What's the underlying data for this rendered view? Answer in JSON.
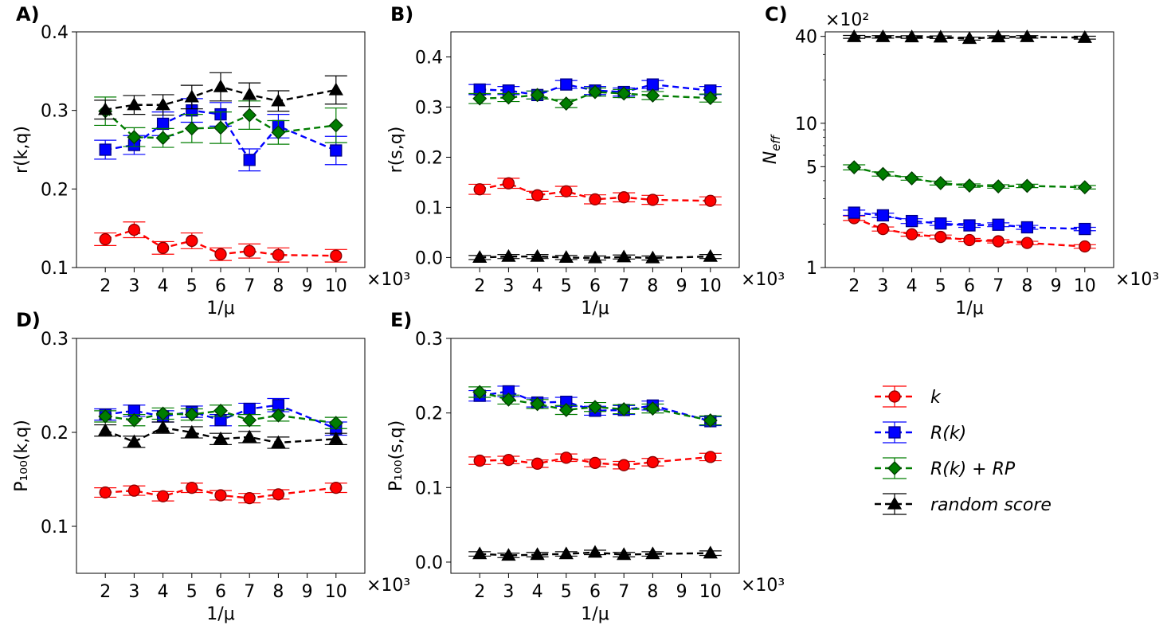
{
  "chart_data": [
    {
      "panel": "A)",
      "type": "line",
      "scale": "linear",
      "xlabel": "1/μ",
      "ylabel": "r(k,q)",
      "x_offset_label": "×10³",
      "x": [
        2,
        3,
        4,
        5,
        6,
        7,
        8,
        10
      ],
      "xlim": [
        1,
        11
      ],
      "ylim": [
        0.1,
        0.4
      ],
      "xticks": [
        2,
        3,
        4,
        5,
        6,
        7,
        8,
        9,
        10
      ],
      "yticks": [
        {
          "v": 0.1,
          "label": "0.1"
        },
        {
          "v": 0.2,
          "label": "0.2"
        },
        {
          "v": 0.3,
          "label": "0.3"
        },
        {
          "v": 0.4,
          "label": "0.4"
        }
      ],
      "series": [
        {
          "name": "k",
          "values": [
            0.136,
            0.148,
            0.125,
            0.134,
            0.117,
            0.121,
            0.116,
            0.115
          ],
          "errors": [
            0.008,
            0.01,
            0.008,
            0.01,
            0.008,
            0.009,
            0.009,
            0.008
          ]
        },
        {
          "name": "R(k)",
          "values": [
            0.25,
            0.256,
            0.283,
            0.3,
            0.295,
            0.237,
            0.28,
            0.249
          ],
          "errors": [
            0.012,
            0.012,
            0.015,
            0.015,
            0.015,
            0.014,
            0.015,
            0.018
          ]
        },
        {
          "name": "R(k)+RP",
          "values": [
            0.299,
            0.266,
            0.265,
            0.277,
            0.278,
            0.294,
            0.272,
            0.281
          ],
          "errors": [
            0.018,
            0.012,
            0.012,
            0.018,
            0.02,
            0.018,
            0.015,
            0.022
          ]
        },
        {
          "name": "random score",
          "values": [
            0.301,
            0.307,
            0.307,
            0.317,
            0.33,
            0.32,
            0.312,
            0.326
          ],
          "errors": [
            0.012,
            0.012,
            0.013,
            0.015,
            0.018,
            0.015,
            0.013,
            0.018
          ]
        }
      ]
    },
    {
      "panel": "B)",
      "type": "line",
      "scale": "linear",
      "xlabel": "1/μ",
      "ylabel": "r(s,q)",
      "x_offset_label": "×10³",
      "x": [
        2,
        3,
        4,
        5,
        6,
        7,
        8,
        10
      ],
      "xlim": [
        1,
        11
      ],
      "ylim": [
        -0.02,
        0.45
      ],
      "xticks": [
        2,
        3,
        4,
        5,
        6,
        7,
        8,
        9,
        10
      ],
      "yticks": [
        {
          "v": 0.0,
          "label": "0.0"
        },
        {
          "v": 0.1,
          "label": "0.1"
        },
        {
          "v": 0.2,
          "label": "0.2"
        },
        {
          "v": 0.3,
          "label": "0.3"
        },
        {
          "v": 0.4,
          "label": "0.4"
        }
      ],
      "series": [
        {
          "name": "k",
          "values": [
            0.136,
            0.148,
            0.124,
            0.132,
            0.116,
            0.12,
            0.115,
            0.113
          ],
          "errors": [
            0.01,
            0.01,
            0.008,
            0.01,
            0.009,
            0.009,
            0.009,
            0.008
          ]
        },
        {
          "name": "R(k)",
          "values": [
            0.335,
            0.333,
            0.324,
            0.345,
            0.333,
            0.33,
            0.345,
            0.333
          ],
          "errors": [
            0.01,
            0.008,
            0.008,
            0.008,
            0.008,
            0.008,
            0.008,
            0.008
          ]
        },
        {
          "name": "R(k)+RP",
          "values": [
            0.317,
            0.319,
            0.324,
            0.307,
            0.33,
            0.327,
            0.323,
            0.318
          ],
          "errors": [
            0.01,
            0.008,
            0.008,
            0.008,
            0.008,
            0.008,
            0.008,
            0.008
          ]
        },
        {
          "name": "random score",
          "values": [
            0.0,
            0.002,
            0.002,
            0.0,
            -0.001,
            0.001,
            -0.001,
            0.002
          ],
          "errors": [
            0.004,
            0.004,
            0.004,
            0.004,
            0.004,
            0.004,
            0.004,
            0.004
          ]
        }
      ]
    },
    {
      "panel": "C)",
      "type": "line",
      "scale": "log",
      "xlabel": "1/μ",
      "ylabel": "N_eff",
      "x_offset_label": "×10³",
      "y_offset_label": "×10²",
      "x": [
        2,
        3,
        4,
        5,
        6,
        7,
        8,
        10
      ],
      "xlim": [
        1,
        11
      ],
      "ylim": [
        1,
        43
      ],
      "xticks": [
        2,
        3,
        4,
        5,
        6,
        7,
        8,
        9,
        10
      ],
      "yticks": [
        {
          "v": 1,
          "label": "1"
        },
        {
          "v": 5,
          "label": "5"
        },
        {
          "v": 10,
          "label": "10"
        },
        {
          "v": 40,
          "label": "40"
        }
      ],
      "series": [
        {
          "name": "k",
          "values": [
            2.2,
            1.85,
            1.7,
            1.63,
            1.55,
            1.52,
            1.48,
            1.4
          ],
          "errors": [
            0.08,
            0.06,
            0.05,
            0.05,
            0.04,
            0.04,
            0.04,
            0.04
          ]
        },
        {
          "name": "R(k)",
          "values": [
            2.4,
            2.3,
            2.1,
            2.02,
            1.96,
            1.98,
            1.9,
            1.85
          ],
          "errors": [
            0.1,
            0.08,
            0.08,
            0.06,
            0.06,
            0.06,
            0.06,
            0.05
          ]
        },
        {
          "name": "R(k)+RP",
          "values": [
            4.95,
            4.45,
            4.15,
            3.85,
            3.7,
            3.65,
            3.68,
            3.6
          ],
          "errors": [
            0.2,
            0.15,
            0.12,
            0.12,
            0.1,
            0.1,
            0.1,
            0.1
          ]
        },
        {
          "name": "random score",
          "values": [
            39.7,
            39.7,
            39.6,
            39.5,
            38.6,
            39.6,
            39.7,
            39.2
          ],
          "errors": [
            0.9,
            0.8,
            0.8,
            0.8,
            0.9,
            0.8,
            0.8,
            0.9
          ]
        }
      ]
    },
    {
      "panel": "D)",
      "type": "line",
      "scale": "linear",
      "xlabel": "1/μ",
      "ylabel": "P₁₀₀(k,q)",
      "x_offset_label": "×10³",
      "x": [
        2,
        3,
        4,
        5,
        6,
        7,
        8,
        10
      ],
      "xlim": [
        1,
        11
      ],
      "ylim": [
        0.05,
        0.3
      ],
      "xticks": [
        2,
        3,
        4,
        5,
        6,
        7,
        8,
        9,
        10
      ],
      "yticks": [
        {
          "v": 0.1,
          "label": "0.1"
        },
        {
          "v": 0.2,
          "label": "0.2"
        },
        {
          "v": 0.3,
          "label": "0.3"
        }
      ],
      "series": [
        {
          "name": "k",
          "values": [
            0.136,
            0.138,
            0.132,
            0.141,
            0.133,
            0.13,
            0.134,
            0.141
          ],
          "errors": [
            0.005,
            0.005,
            0.005,
            0.005,
            0.005,
            0.005,
            0.005,
            0.005
          ]
        },
        {
          "name": "R(k)",
          "values": [
            0.219,
            0.223,
            0.217,
            0.222,
            0.213,
            0.225,
            0.229,
            0.204
          ],
          "errors": [
            0.006,
            0.006,
            0.006,
            0.006,
            0.006,
            0.006,
            0.007,
            0.007
          ]
        },
        {
          "name": "R(k)+RP",
          "values": [
            0.217,
            0.213,
            0.22,
            0.219,
            0.223,
            0.213,
            0.218,
            0.21
          ],
          "errors": [
            0.006,
            0.006,
            0.006,
            0.006,
            0.006,
            0.006,
            0.006,
            0.006
          ]
        },
        {
          "name": "random score",
          "values": [
            0.202,
            0.19,
            0.205,
            0.2,
            0.193,
            0.195,
            0.189,
            0.193
          ],
          "errors": [
            0.006,
            0.006,
            0.006,
            0.006,
            0.006,
            0.006,
            0.006,
            0.006
          ]
        }
      ]
    },
    {
      "panel": "E)",
      "type": "line",
      "scale": "linear",
      "xlabel": "1/μ",
      "ylabel": "P₁₀₀(s,q)",
      "x_offset_label": "×10³",
      "x": [
        2,
        3,
        4,
        5,
        6,
        7,
        8,
        10
      ],
      "xlim": [
        1,
        11
      ],
      "ylim": [
        -0.015,
        0.3
      ],
      "xticks": [
        2,
        3,
        4,
        5,
        6,
        7,
        8,
        9,
        10
      ],
      "yticks": [
        {
          "v": 0.0,
          "label": "0.0"
        },
        {
          "v": 0.1,
          "label": "0.1"
        },
        {
          "v": 0.2,
          "label": "0.2"
        },
        {
          "v": 0.3,
          "label": "0.3"
        }
      ],
      "series": [
        {
          "name": "k",
          "values": [
            0.136,
            0.137,
            0.132,
            0.14,
            0.133,
            0.13,
            0.134,
            0.141
          ],
          "errors": [
            0.005,
            0.005,
            0.005,
            0.005,
            0.005,
            0.005,
            0.005,
            0.005
          ]
        },
        {
          "name": "R(k)",
          "values": [
            0.223,
            0.229,
            0.214,
            0.215,
            0.203,
            0.204,
            0.21,
            0.189
          ],
          "errors": [
            0.007,
            0.007,
            0.006,
            0.006,
            0.006,
            0.006,
            0.006,
            0.006
          ]
        },
        {
          "name": "R(k)+RP",
          "values": [
            0.228,
            0.218,
            0.212,
            0.204,
            0.208,
            0.205,
            0.206,
            0.19
          ],
          "errors": [
            0.007,
            0.006,
            0.006,
            0.006,
            0.006,
            0.006,
            0.006,
            0.006
          ]
        },
        {
          "name": "random score",
          "values": [
            0.011,
            0.009,
            0.01,
            0.011,
            0.013,
            0.01,
            0.011,
            0.012
          ],
          "errors": [
            0.003,
            0.003,
            0.003,
            0.003,
            0.003,
            0.003,
            0.003,
            0.003
          ]
        }
      ]
    }
  ],
  "legend": {
    "placement": "lower-right",
    "entries": [
      {
        "label": "k",
        "color": "#ff0000",
        "edge": "#b00000",
        "marker": "circle"
      },
      {
        "label": "R(k)",
        "color": "#0000ff",
        "edge": "#0000c0",
        "marker": "square"
      },
      {
        "label": "R(k) + RP",
        "color": "#007d00",
        "edge": "#007d00",
        "marker": "diamond"
      },
      {
        "label": "random score",
        "color": "#000000",
        "edge": "#000000",
        "marker": "triangle"
      }
    ]
  }
}
